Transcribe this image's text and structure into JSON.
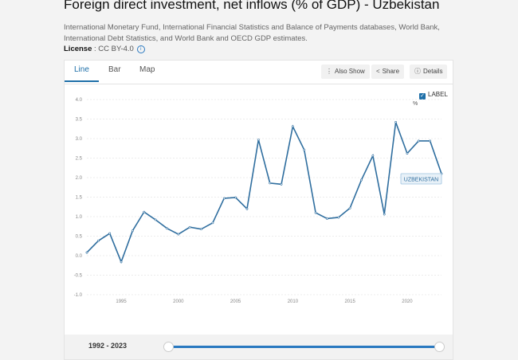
{
  "header": {
    "title": "Foreign direct investment, net inflows (% of GDP) - Uzbekistan",
    "source": "International Monetary Fund, International Financial Statistics and Balance of Payments databases, World Bank, International Debt Statistics, and World Bank and OECD GDP estimates.",
    "license_label": "License",
    "license_value": " : CC BY-4.0"
  },
  "tabs": [
    {
      "label": "Line",
      "active": true
    },
    {
      "label": "Bar",
      "active": false
    },
    {
      "label": "Map",
      "active": false
    }
  ],
  "toolbar": {
    "also_show": "Also Show",
    "share": "Share",
    "details": "Details"
  },
  "label_toggle": {
    "label": "LABEL",
    "checked": true
  },
  "series_tag": "UZBEKISTAN",
  "footer": {
    "range_label": "1992 - 2023",
    "slider_start_fraction": 0.0,
    "slider_end_fraction": 1.0
  },
  "chart_data": {
    "type": "line",
    "ylabel": "%",
    "ylim": [
      -1.0,
      4.0
    ],
    "yticks": [
      "4.0",
      "3.5",
      "3.0",
      "2.5",
      "2.0",
      "1.5",
      "1.0",
      "0.5",
      "0.0",
      "-0.5",
      "-1.0"
    ],
    "xticks": [
      1995,
      2000,
      2005,
      2010,
      2015,
      2020
    ],
    "grid": true,
    "color": "#2f6e9f",
    "series": [
      {
        "name": "UZBEKISTAN",
        "x": [
          1992,
          1993,
          1994,
          1995,
          1996,
          1997,
          1998,
          1999,
          2000,
          2001,
          2002,
          2003,
          2004,
          2005,
          2006,
          2007,
          2008,
          2009,
          2010,
          2011,
          2012,
          2013,
          2014,
          2015,
          2016,
          2017,
          2018,
          2019,
          2020,
          2021,
          2022,
          2023
        ],
        "values": [
          0.08,
          0.38,
          0.57,
          -0.16,
          0.64,
          1.12,
          0.92,
          0.7,
          0.55,
          0.73,
          0.68,
          0.84,
          1.47,
          1.49,
          1.2,
          2.97,
          1.86,
          1.83,
          3.31,
          2.71,
          1.1,
          0.95,
          0.98,
          1.22,
          1.94,
          2.56,
          1.06,
          3.42,
          2.62,
          2.94,
          2.94,
          2.1
        ]
      }
    ]
  }
}
